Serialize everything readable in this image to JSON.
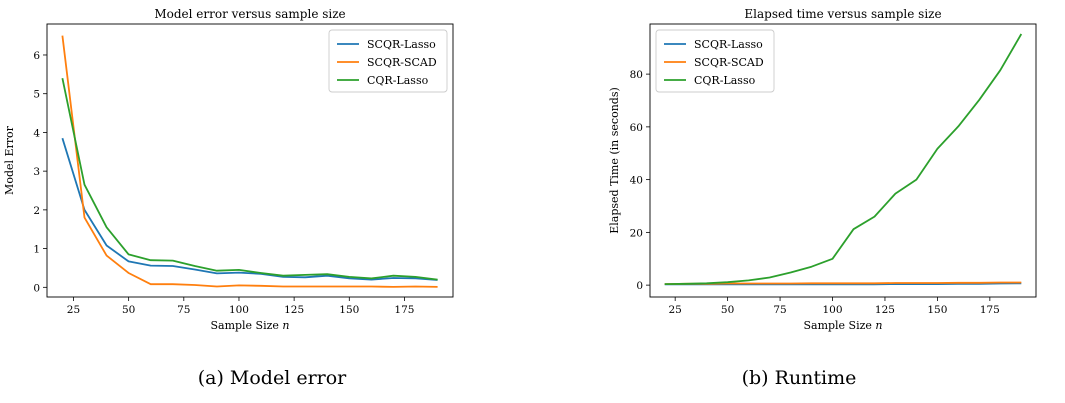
{
  "colors": {
    "SCQR-Lasso": "#1f77b4",
    "SCQR-SCAD": "#ff7f0e",
    "CQR-Lasso": "#2ca02c"
  },
  "captions": [
    "(a) Model error",
    "(b) Runtime"
  ],
  "chart_data": [
    {
      "type": "line",
      "title": "Model error versus sample size",
      "xlabel": "Sample Size n",
      "ylabel": "Model Error",
      "xlim": [
        13,
        197
      ],
      "ylim": [
        -0.25,
        6.8
      ],
      "xticks": [
        25,
        50,
        75,
        100,
        125,
        150,
        175
      ],
      "yticks": [
        0,
        1,
        2,
        3,
        4,
        5,
        6
      ],
      "legend": "top-right",
      "x": [
        20,
        30,
        40,
        50,
        60,
        70,
        80,
        90,
        100,
        110,
        120,
        130,
        140,
        150,
        160,
        170,
        180,
        190
      ],
      "series": [
        {
          "name": "SCQR-Lasso",
          "values": [
            3.85,
            2.0,
            1.08,
            0.67,
            0.56,
            0.55,
            0.46,
            0.36,
            0.38,
            0.35,
            0.27,
            0.26,
            0.3,
            0.23,
            0.2,
            0.24,
            0.23,
            0.19
          ]
        },
        {
          "name": "SCQR-SCAD",
          "values": [
            6.5,
            1.8,
            0.82,
            0.37,
            0.08,
            0.08,
            0.06,
            0.02,
            0.05,
            0.04,
            0.02,
            0.02,
            0.02,
            0.02,
            0.02,
            0.01,
            0.02,
            0.01
          ]
        },
        {
          "name": "CQR-Lasso",
          "values": [
            5.4,
            2.65,
            1.55,
            0.85,
            0.7,
            0.69,
            0.55,
            0.43,
            0.45,
            0.37,
            0.3,
            0.32,
            0.34,
            0.27,
            0.23,
            0.3,
            0.27,
            0.2
          ]
        }
      ]
    },
    {
      "type": "line",
      "title": "Elapsed time versus sample size",
      "xlabel": "Sample Size n",
      "ylabel": "Elapsed Time (in seconds)",
      "xlim": [
        13,
        197
      ],
      "ylim": [
        -4.5,
        99
      ],
      "xticks": [
        25,
        50,
        75,
        100,
        125,
        150,
        175
      ],
      "yticks": [
        0,
        20,
        40,
        60,
        80
      ],
      "legend": "top-left",
      "x": [
        20,
        30,
        40,
        50,
        60,
        70,
        80,
        90,
        100,
        110,
        120,
        130,
        140,
        150,
        160,
        170,
        180,
        190
      ],
      "series": [
        {
          "name": "SCQR-Lasso",
          "values": [
            0.3,
            0.3,
            0.3,
            0.3,
            0.3,
            0.3,
            0.3,
            0.3,
            0.3,
            0.3,
            0.3,
            0.4,
            0.4,
            0.4,
            0.5,
            0.5,
            0.6,
            0.7
          ]
        },
        {
          "name": "SCQR-SCAD",
          "values": [
            0.4,
            0.5,
            0.5,
            0.6,
            0.6,
            0.6,
            0.6,
            0.7,
            0.7,
            0.7,
            0.7,
            0.8,
            0.8,
            0.8,
            0.9,
            0.9,
            1.0,
            1.0
          ]
        },
        {
          "name": "CQR-Lasso",
          "values": [
            0.4,
            0.5,
            0.7,
            1.1,
            1.8,
            2.9,
            4.8,
            7.0,
            10.0,
            21.2,
            26.0,
            34.7,
            40.0,
            51.7,
            60.2,
            70.3,
            81.5,
            95.2
          ]
        }
      ]
    }
  ]
}
